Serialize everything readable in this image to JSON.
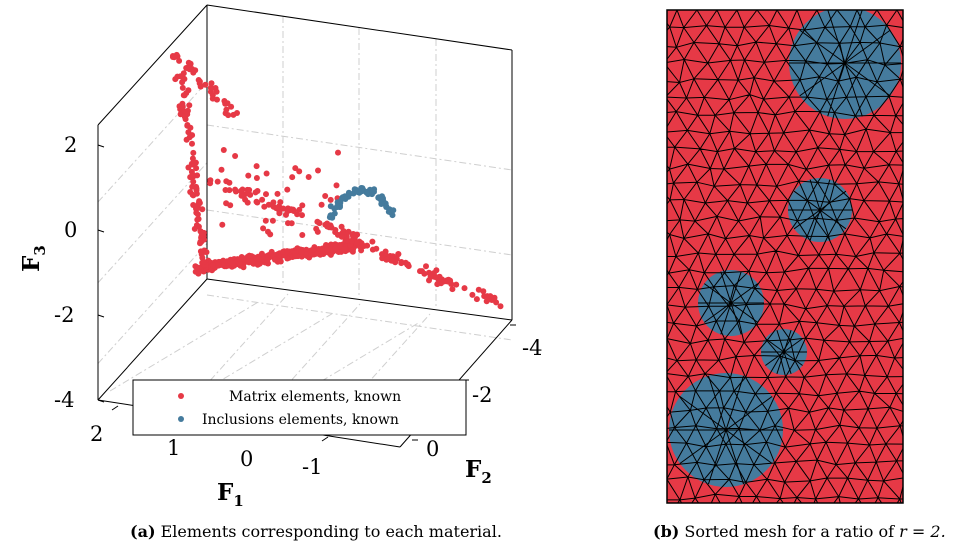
{
  "chart_data": [
    {
      "type": "scatter",
      "projection": "3d",
      "title": "",
      "xlabel": "F",
      "xlabel_sub": "1",
      "ylabel": "F",
      "ylabel_sub": "2",
      "zlabel": "F",
      "zlabel_sub": "3",
      "xlim": [
        -2,
        2
      ],
      "ylim": [
        -4,
        0
      ],
      "zlim": [
        -4,
        2
      ],
      "x_ticks": [
        "2",
        "1",
        "0",
        "-1"
      ],
      "y_ticks": [
        "-4",
        "-2",
        "0"
      ],
      "z_ticks": [
        "2",
        "0",
        "-2",
        "-4"
      ],
      "grid": true,
      "legend_position": "bottom",
      "series": [
        {
          "name": "Matrix elements, known",
          "color": "#e63946"
        },
        {
          "name": "Inclusions elements, known",
          "color": "#457b9d"
        }
      ],
      "caption_label": "(a)",
      "caption_text": "Elements corresponding to each material."
    },
    {
      "type": "mesh",
      "matrix_color": "#e63946",
      "inclusion_color": "#457b9d",
      "edge_color": "#000000",
      "caption_label": "(b)",
      "caption_text": "Sorted mesh for a ratio of",
      "caption_math": "r = 2."
    }
  ]
}
